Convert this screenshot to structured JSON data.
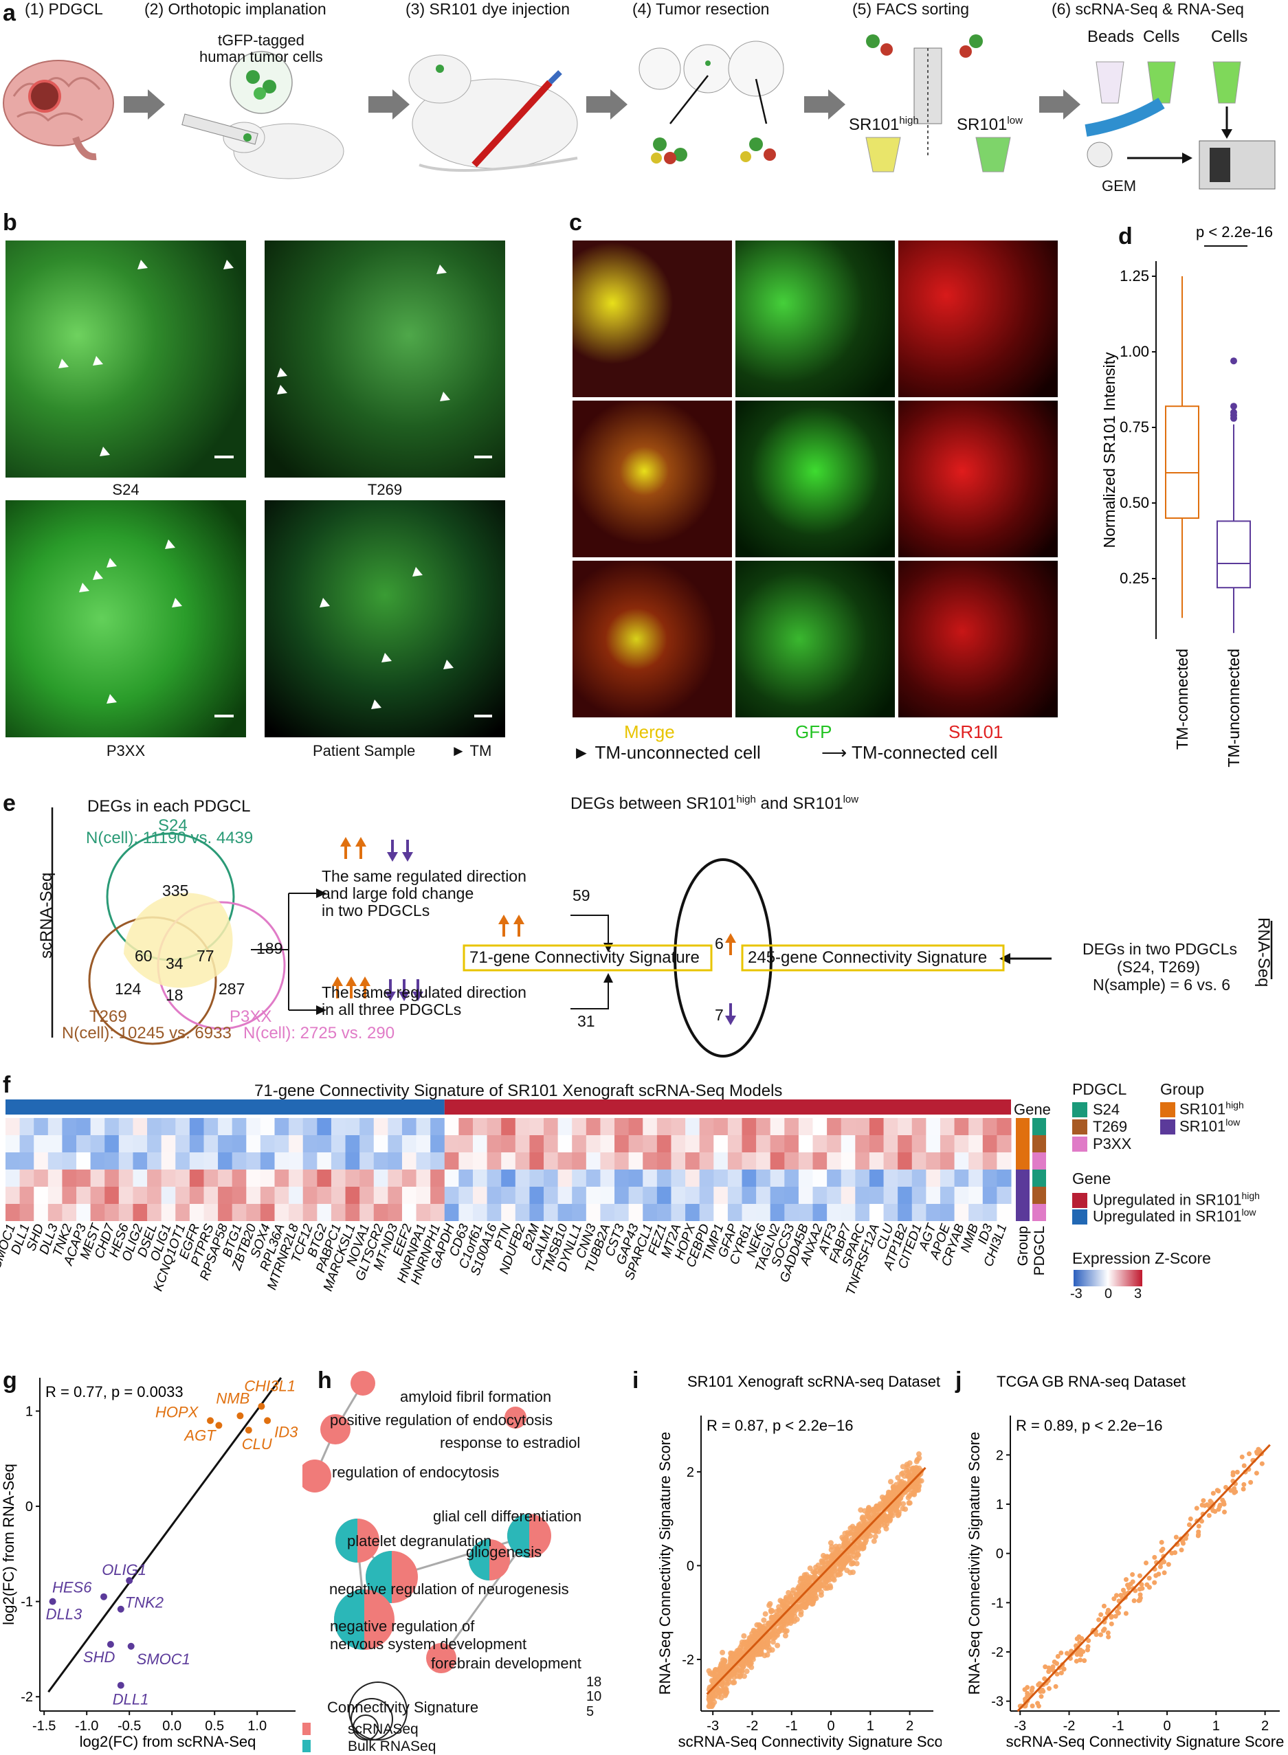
{
  "colors": {
    "orange": "#e0700f",
    "purple": "#5b3a9a",
    "green_ring": "#2a9a76",
    "brown": "#9a5a28",
    "pink": "#e07bc7",
    "up_red": "#b81f34",
    "down_blue": "#2268b4",
    "yellow_box": "#e8c400",
    "teal": "#2bb7b8",
    "salmon": "#f07b79",
    "scatter_orange": "#f6a463",
    "fit_line": "#d55a10"
  },
  "panel_a": {
    "label": "a",
    "steps": [
      "(1) PDGCL",
      "(2) Orthotopic implanation",
      "(3) SR101 dye injection",
      "(4) Tumor resection",
      "(5) FACS sorting",
      "(6) scRNA-Seq & RNA-Seq"
    ],
    "tgfp_text": "tGFP-tagged\nhuman tumor cells",
    "sr101_high": "SR101",
    "sr101_high_sup": "high",
    "sr101_low": "SR101",
    "sr101_low_sup": "low",
    "beads": "Beads",
    "cells1": "Cells",
    "cells2": "Cells",
    "gem": "GEM"
  },
  "panel_b": {
    "label": "b",
    "captions": [
      "S24",
      "T269",
      "P3XX",
      "Patient Sample"
    ],
    "legend": "TM"
  },
  "panel_c": {
    "label": "c",
    "col_labels": [
      "Merge",
      "GFP",
      "SR101"
    ],
    "legend_arrowhead": "TM-unconnected cell",
    "legend_arrow": "TM-connected cell"
  },
  "panel_d": {
    "label": "d",
    "pvalue": "p < 2.2e-16",
    "ylabel": "Normalized SR101 Intensity"
  },
  "panel_e": {
    "label": "e",
    "side_left": "scRNA-Seq",
    "side_right": "RNA-Seq",
    "title_left": "DEGs in each PDGCL",
    "title_mid": "DEGs between SR101",
    "title_mid_sup1": "high",
    "title_mid_and": " and SR101",
    "title_mid_sup2": "low",
    "venn": {
      "s24": "S24",
      "s24_n": "N(cell): 11190 vs. 4439",
      "t269": "T269",
      "t269_n": "N(cell): 10245 vs. 6933",
      "p3xx": "P3XX",
      "p3xx_n": "N(cell): 2725 vs. 290",
      "n335": "335",
      "n60": "60",
      "n34": "34",
      "n77": "77",
      "n124": "124",
      "n18": "18",
      "n287": "287"
    },
    "n189": "189",
    "text_two": "The same regulated direction\nand large fold change\nin two PDGCLs",
    "text_three": "The same regulated direction\nin all three PDGCLs",
    "n59": "59",
    "n31": "31",
    "sig71": "71-gene Connectivity Signature",
    "sig245": "245-gene Connectivity Signature",
    "n6": "6",
    "n7": "7",
    "deg_two": "DEGs in two PDGCLs",
    "deg_two_b": "(S24, T269)",
    "deg_two_c": "N(sample) = 6 vs. 6"
  },
  "panel_f": {
    "label": "f",
    "title": "71-gene Connectivity Signature of SR101 Xenograft scRNA-Seq Models",
    "gene_label": "Gene",
    "group_label": "Group",
    "pdgcl_label": "PDGCL",
    "genes": [
      "SMOC1",
      "DLL1",
      "SHD",
      "DLL3",
      "TNK2",
      "ACAP3",
      "MEST",
      "CHD7",
      "HES6",
      "OLIG2",
      "DSEL",
      "OLIG1",
      "KCNQ1OT1",
      "EGFR",
      "PTPRS",
      "RPSAP58",
      "BTG1",
      "ZBTB20",
      "SOX4",
      "RPL36A",
      "MTRNR2L8",
      "TCF12",
      "BTG2",
      "PABPC1",
      "MARCKSL1",
      "NOVA1",
      "GLTSCR2",
      "MT-ND3",
      "EEF2",
      "HNRNPA1",
      "HNRNPH1",
      "GAPDH",
      "CD63",
      "C1orf61",
      "S100A16",
      "PTN",
      "NDUFB2",
      "B2M",
      "CALM1",
      "TMSB10",
      "DYNLL1",
      "CNN3",
      "TUBB2A",
      "CST3",
      "GAP43",
      "SPARCL1",
      "FEZ1",
      "MT2A",
      "HOPX",
      "CEBPD",
      "TIMP1",
      "GFAP",
      "CYR61",
      "NEK6",
      "TAGLN2",
      "SOCS3",
      "GADD45B",
      "ANXA2",
      "ATF3",
      "FABP7",
      "SPARC",
      "TNFRSF12A",
      "CLU",
      "ATP1B2",
      "CITED1",
      "AGT",
      "APOE",
      "CRYAB",
      "NMB",
      "ID3",
      "CHI3L1"
    ],
    "legend_pdgcl": [
      "S24",
      "T269",
      "P3XX"
    ],
    "legend_group": [
      "SR101",
      "SR101"
    ],
    "legend_group_sup": [
      "high",
      "low"
    ],
    "legend_gene_title": "Gene",
    "legend_gene": [
      "Upregulated in SR101",
      "Upregulated in SR101"
    ],
    "legend_gene_sup": [
      "high",
      "low"
    ],
    "zscore_title": "Expression Z-Score",
    "zscore_ticks": [
      "-3",
      "0",
      "3"
    ]
  },
  "panel_g": {
    "label": "g",
    "stat": "R = 0.77, p = 0.0033",
    "xlabel": "log2(FC) from scRNA-Seq",
    "ylabel": "log2(FC) from RNA-Seq"
  },
  "panel_h": {
    "label": "h",
    "terms": [
      "amyloid fibril formation",
      "positive regulation of endocytosis",
      "response to estradiol",
      "regulation of endocytosis",
      "glial cell differentiation",
      "platelet degranulation",
      "gliogenesis",
      "negative regulation of neurogenesis",
      "negative regulation of",
      "nervous system development",
      "forebrain development"
    ],
    "legend_title": "Connectivity Signature",
    "legend_items": [
      "scRNASeq",
      "Bulk RNASeq"
    ],
    "size_ticks": [
      "18",
      "10",
      "5"
    ]
  },
  "panel_i": {
    "label": "i",
    "title": "SR101 Xenograft scRNA-seq Dataset",
    "stat": "R = 0.87, p < 2.2e−16",
    "xlabel": "scRNA-Seq Connectivity Signature Score",
    "ylabel": "RNA-Seq Connectivity Signature Score"
  },
  "panel_j": {
    "label": "j",
    "title": "TCGA GB RNA-seq Dataset",
    "stat": "R = 0.89, p < 2.2e−16",
    "xlabel": "scRNA-Seq Connectivity Signature Score",
    "ylabel": "RNA-Seq Connectivity Signature Score"
  },
  "chart_data": [
    {
      "type": "box",
      "panel": "d",
      "categories": [
        "TM-connected",
        "TM-unconnected"
      ],
      "ylabel": "Normalized SR101 Intensity",
      "ylim": [
        0.05,
        1.3
      ],
      "yticks": [
        "0.25",
        "0.50",
        "0.75",
        "1.00",
        "1.25"
      ],
      "series": [
        {
          "name": "TM-connected",
          "min": 0.12,
          "q1": 0.45,
          "median": 0.6,
          "q3": 0.82,
          "max": 1.25,
          "outliers": []
        },
        {
          "name": "TM-unconnected",
          "min": 0.07,
          "q1": 0.22,
          "median": 0.3,
          "q3": 0.44,
          "max": 0.76,
          "outliers": [
            0.97,
            0.82,
            0.8,
            0.79,
            0.78
          ]
        }
      ]
    },
    {
      "type": "scatter",
      "panel": "g",
      "xlabel": "log2(FC) from scRNA-Seq",
      "ylabel": "log2(FC) from RNA-Seq",
      "xlim": [
        -1.55,
        1.45
      ],
      "ylim": [
        -2.15,
        1.35
      ],
      "xticks": [
        "-1.5",
        "-1.0",
        "-0.5",
        "0.0",
        "0.5",
        "1.0"
      ],
      "yticks": [
        "-2",
        "-1",
        "0",
        "1"
      ],
      "points": [
        {
          "label": "CHI3L1",
          "x": 1.05,
          "y": 1.05
        },
        {
          "label": "NMB",
          "x": 0.8,
          "y": 0.95
        },
        {
          "label": "HOPX",
          "x": 0.45,
          "y": 0.9
        },
        {
          "label": "ID3",
          "x": 1.12,
          "y": 0.9
        },
        {
          "label": "AGT",
          "x": 0.55,
          "y": 0.85
        },
        {
          "label": "CLU",
          "x": 0.9,
          "y": 0.8
        },
        {
          "label": "OLIG1",
          "x": -0.5,
          "y": -0.78
        },
        {
          "label": "HES6",
          "x": -0.8,
          "y": -0.95
        },
        {
          "label": "DLL3",
          "x": -1.4,
          "y": -1.0
        },
        {
          "label": "TNK2",
          "x": -0.6,
          "y": -1.08
        },
        {
          "label": "SHD",
          "x": -0.72,
          "y": -1.45
        },
        {
          "label": "SMOC1",
          "x": -0.48,
          "y": -1.47
        },
        {
          "label": "DLL1",
          "x": -0.6,
          "y": -1.88
        }
      ]
    },
    {
      "type": "scatter",
      "panel": "i",
      "title": "SR101 Xenograft scRNA-seq Dataset",
      "xlabel": "scRNA-Seq Connectivity Signature Score",
      "ylabel": "RNA-Seq Connectivity Signature Score",
      "xlim": [
        -3.3,
        2.6
      ],
      "ylim": [
        -3.1,
        3.2
      ],
      "xticks": [
        "-3",
        "-2",
        "-1",
        "0",
        "1",
        "2"
      ],
      "yticks": [
        "-2",
        "0",
        "2"
      ],
      "fit": {
        "slope": 0.87,
        "intercept": 0
      }
    },
    {
      "type": "scatter",
      "panel": "j",
      "title": "TCGA GB RNA-seq Dataset",
      "xlabel": "scRNA-Seq Connectivity Signature Score",
      "ylabel": "RNA-Seq Connectivity Signature Score",
      "xlim": [
        -3.2,
        2.3
      ],
      "ylim": [
        -3.2,
        2.8
      ],
      "xticks": [
        "-3",
        "-2",
        "-1",
        "0",
        "1",
        "2"
      ],
      "yticks": [
        "-3",
        "-2",
        "-1",
        "0",
        "1",
        "2"
      ],
      "fit": {
        "slope": 1.05,
        "intercept": 0
      }
    }
  ]
}
